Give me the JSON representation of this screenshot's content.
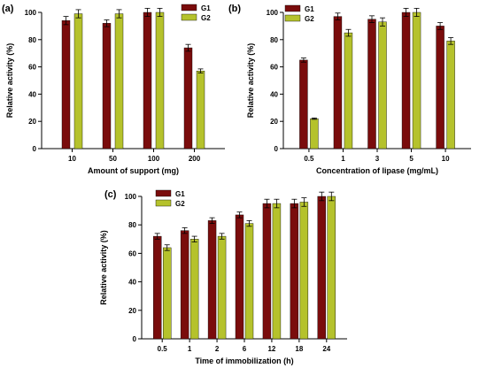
{
  "colors": {
    "G1": "#7a0c0c",
    "G2": "#b5c22c"
  },
  "chart_data": [
    {
      "panel": "(a)",
      "type": "bar",
      "categories": [
        "10",
        "50",
        "100",
        "200"
      ],
      "series": [
        {
          "name": "G1",
          "values": [
            94,
            92,
            100,
            74
          ],
          "errors": [
            3,
            2.5,
            3,
            2.5
          ]
        },
        {
          "name": "G2",
          "values": [
            99,
            99,
            100,
            57
          ],
          "errors": [
            3,
            3,
            3,
            1.5
          ]
        }
      ],
      "xlabel": "Amount of support (mg)",
      "ylabel": "Relative activity (%)",
      "ylim": [
        0,
        100
      ],
      "yticks": [
        "0",
        "20",
        "40",
        "60",
        "80",
        "100"
      ],
      "legend": "top-right",
      "grid": false
    },
    {
      "panel": "(b)",
      "type": "bar",
      "categories": [
        "0.5",
        "1",
        "3",
        "5",
        "10"
      ],
      "series": [
        {
          "name": "G1",
          "values": [
            65,
            97,
            95,
            100,
            90
          ],
          "errors": [
            1.5,
            2.5,
            2.5,
            3,
            2.5
          ]
        },
        {
          "name": "G2",
          "values": [
            22,
            85,
            93,
            100,
            79
          ],
          "errors": [
            0.5,
            2.5,
            3,
            3,
            2.5
          ]
        }
      ],
      "xlabel": "Concentration of lipase (mg/mL)",
      "ylabel": "Relative activity (%)",
      "ylim": [
        0,
        100
      ],
      "yticks": [
        "0",
        "20",
        "40",
        "60",
        "80",
        "100"
      ],
      "legend": "top-left",
      "grid": false
    },
    {
      "panel": "(c)",
      "type": "bar",
      "categories": [
        "0.5",
        "1",
        "2",
        "6",
        "12",
        "18",
        "24"
      ],
      "series": [
        {
          "name": "G1",
          "values": [
            72,
            76,
            83,
            87,
            95,
            95,
            100
          ],
          "errors": [
            2,
            2,
            2,
            2,
            3,
            3,
            3
          ]
        },
        {
          "name": "G2",
          "values": [
            64,
            70,
            72,
            81,
            95,
            96,
            100
          ],
          "errors": [
            2,
            2,
            2,
            2,
            3,
            3,
            3
          ]
        }
      ],
      "xlabel": "Time of immobilization (h)",
      "ylabel": "Relative activity (%)",
      "ylim": [
        0,
        100
      ],
      "yticks": [
        "0",
        "20",
        "40",
        "60",
        "80",
        "100"
      ],
      "legend": "top-left",
      "grid": false
    }
  ]
}
